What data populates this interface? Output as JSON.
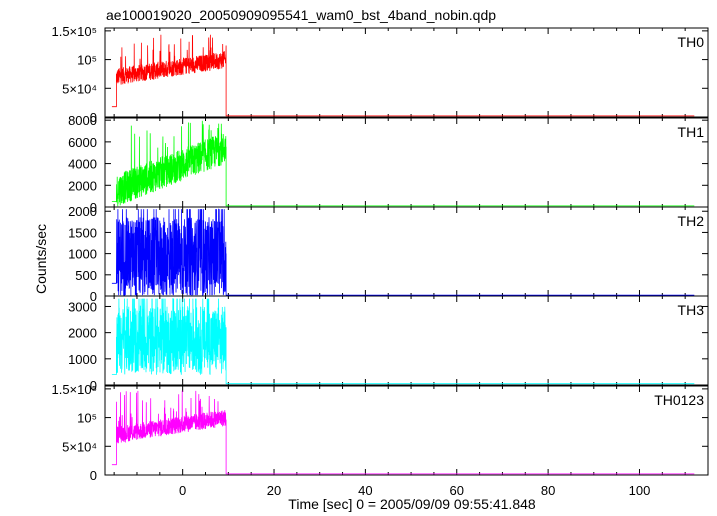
{
  "chart_data": {
    "type": "line",
    "title": "ae100019020_20050909095541_wam0_bst_4band_nobin.qdp",
    "xlabel": "Time [sec] 0 = 2005/09/09 09:55:41.848",
    "ylabel": "Counts/sec",
    "xlim": [
      -17,
      115
    ],
    "x_ticks": [
      0,
      20,
      40,
      60,
      80,
      100
    ],
    "grid": false,
    "panels": [
      {
        "name": "TH0",
        "color": "#ff0000",
        "ylim": [
          0,
          155000
        ],
        "y_ticks": [
          {
            "value": 0,
            "label": "0"
          },
          {
            "value": 50000,
            "label": "5×10⁴"
          },
          {
            "value": 100000,
            "label": "10⁵"
          },
          {
            "value": 150000,
            "label": "1.5×10⁵"
          }
        ],
        "pre_burst": {
          "x": [
            -15.5,
            -14.5
          ],
          "value": 18000
        },
        "burst": {
          "x": [
            -14.5,
            9.5
          ],
          "start": 70000,
          "end": 100000,
          "noise": 25000,
          "peak": 145000
        },
        "tail": {
          "x": [
            9.5,
            112
          ],
          "value": 2000
        }
      },
      {
        "name": "TH1",
        "color": "#00ff00",
        "ylim": [
          0,
          8200
        ],
        "y_ticks": [
          {
            "value": 0,
            "label": "0"
          },
          {
            "value": 2000,
            "label": "2000"
          },
          {
            "value": 4000,
            "label": "4000"
          },
          {
            "value": 6000,
            "label": "6000"
          },
          {
            "value": 8000,
            "label": "8000"
          }
        ],
        "pre_burst": {
          "x": [
            -15.5,
            -14.5
          ],
          "value": 500
        },
        "burst": {
          "x": [
            -14.5,
            9.5
          ],
          "start": 1500,
          "end": 5500,
          "noise": 2500,
          "peak": 8000
        },
        "tail": {
          "x": [
            9.5,
            112
          ],
          "value": 100
        }
      },
      {
        "name": "TH2",
        "color": "#0000ff",
        "ylim": [
          0,
          2100
        ],
        "y_ticks": [
          {
            "value": 0,
            "label": "0"
          },
          {
            "value": 500,
            "label": "500"
          },
          {
            "value": 1000,
            "label": "1000"
          },
          {
            "value": 1500,
            "label": "1500"
          },
          {
            "value": 2000,
            "label": "2000"
          }
        ],
        "pre_burst": {
          "x": [
            -15.5,
            -14.5
          ],
          "value": 300
        },
        "burst": {
          "x": [
            -14.5,
            9.5
          ],
          "start": 900,
          "end": 900,
          "noise": 1600,
          "peak": 2050
        },
        "tail": {
          "x": [
            9.5,
            112
          ],
          "value": 20
        }
      },
      {
        "name": "TH3",
        "color": "#00ffff",
        "ylim": [
          0,
          3400
        ],
        "y_ticks": [
          {
            "value": 0,
            "label": "0"
          },
          {
            "value": 1000,
            "label": "1000"
          },
          {
            "value": 2000,
            "label": "2000"
          },
          {
            "value": 3000,
            "label": "3000"
          }
        ],
        "pre_burst": {
          "x": [
            -15.5,
            -14.5
          ],
          "value": 400
        },
        "burst": {
          "x": [
            -14.5,
            9.5
          ],
          "start": 1700,
          "end": 1700,
          "noise": 2200,
          "peak": 3300
        },
        "tail": {
          "x": [
            9.5,
            112
          ],
          "value": 50
        }
      },
      {
        "name": "TH0123",
        "color": "#ff00ff",
        "ylim": [
          0,
          155000
        ],
        "y_ticks": [
          {
            "value": 0,
            "label": "0"
          },
          {
            "value": 50000,
            "label": "5×10⁴"
          },
          {
            "value": 100000,
            "label": "10⁵"
          },
          {
            "value": 150000,
            "label": "1.5×10⁵"
          }
        ],
        "pre_burst": {
          "x": [
            -15.5,
            -14.5
          ],
          "value": 18000
        },
        "burst": {
          "x": [
            -14.5,
            9.5
          ],
          "start": 70000,
          "end": 100000,
          "noise": 25000,
          "peak": 148000
        },
        "tail": {
          "x": [
            9.5,
            112
          ],
          "value": 2000
        }
      }
    ]
  }
}
